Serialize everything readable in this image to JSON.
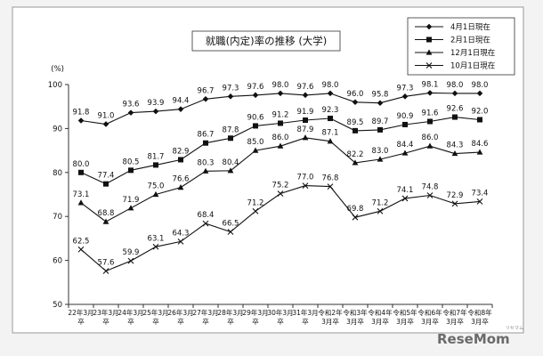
{
  "chart_data": {
    "type": "line",
    "title": "就職(内定)率の推移 (大学)",
    "ylabel": "(%)",
    "ylim": [
      50,
      100
    ],
    "yticks": [
      50,
      60,
      70,
      80,
      90,
      100
    ],
    "categories": [
      [
        "22年3月",
        "卒"
      ],
      [
        "23年3月",
        "卒"
      ],
      [
        "24年3月",
        "卒"
      ],
      [
        "25年3月",
        "卒"
      ],
      [
        "26年3月",
        "卒"
      ],
      [
        "27年3月",
        "卒"
      ],
      [
        "28年3月",
        "卒"
      ],
      [
        "29年3月",
        "卒"
      ],
      [
        "30年3月",
        "卒"
      ],
      [
        "31年3月",
        "卒"
      ],
      [
        "令和2年",
        "3月卒"
      ],
      [
        "令和3年",
        "3月卒"
      ],
      [
        "令和4年",
        "3月卒"
      ],
      [
        "令和5年",
        "3月卒"
      ],
      [
        "令和6年",
        "3月卒"
      ],
      [
        "令和7年",
        "3月卒"
      ],
      [
        "令和8年",
        "3月卒"
      ]
    ],
    "legend_position": "top-right",
    "grid": false,
    "series": [
      {
        "name": "4月1日現在",
        "marker": "diamond",
        "values": [
          91.8,
          91.0,
          93.6,
          93.9,
          94.4,
          96.7,
          97.3,
          97.6,
          98.0,
          97.6,
          98.0,
          96.0,
          95.8,
          97.3,
          98.1,
          98.0,
          98.0
        ]
      },
      {
        "name": "2月1日現在",
        "marker": "square",
        "values": [
          80.0,
          77.4,
          80.5,
          81.7,
          82.9,
          86.7,
          87.8,
          90.6,
          91.2,
          91.9,
          92.3,
          89.5,
          89.7,
          90.9,
          91.6,
          92.6,
          92.0
        ]
      },
      {
        "name": "12月1日現在",
        "marker": "triangle",
        "values": [
          73.1,
          68.8,
          71.9,
          75.0,
          76.6,
          80.3,
          80.4,
          85.0,
          86.0,
          87.9,
          87.1,
          82.2,
          83.0,
          84.4,
          86.0,
          84.3,
          84.6
        ]
      },
      {
        "name": "10月1日現在",
        "marker": "x",
        "values": [
          62.5,
          57.6,
          59.9,
          63.1,
          64.3,
          68.4,
          66.5,
          71.2,
          75.2,
          77.0,
          76.8,
          69.8,
          71.2,
          74.1,
          74.8,
          72.9,
          73.4
        ]
      }
    ]
  },
  "watermark": {
    "text": "ReseMom",
    "subtext": "リセマム"
  }
}
